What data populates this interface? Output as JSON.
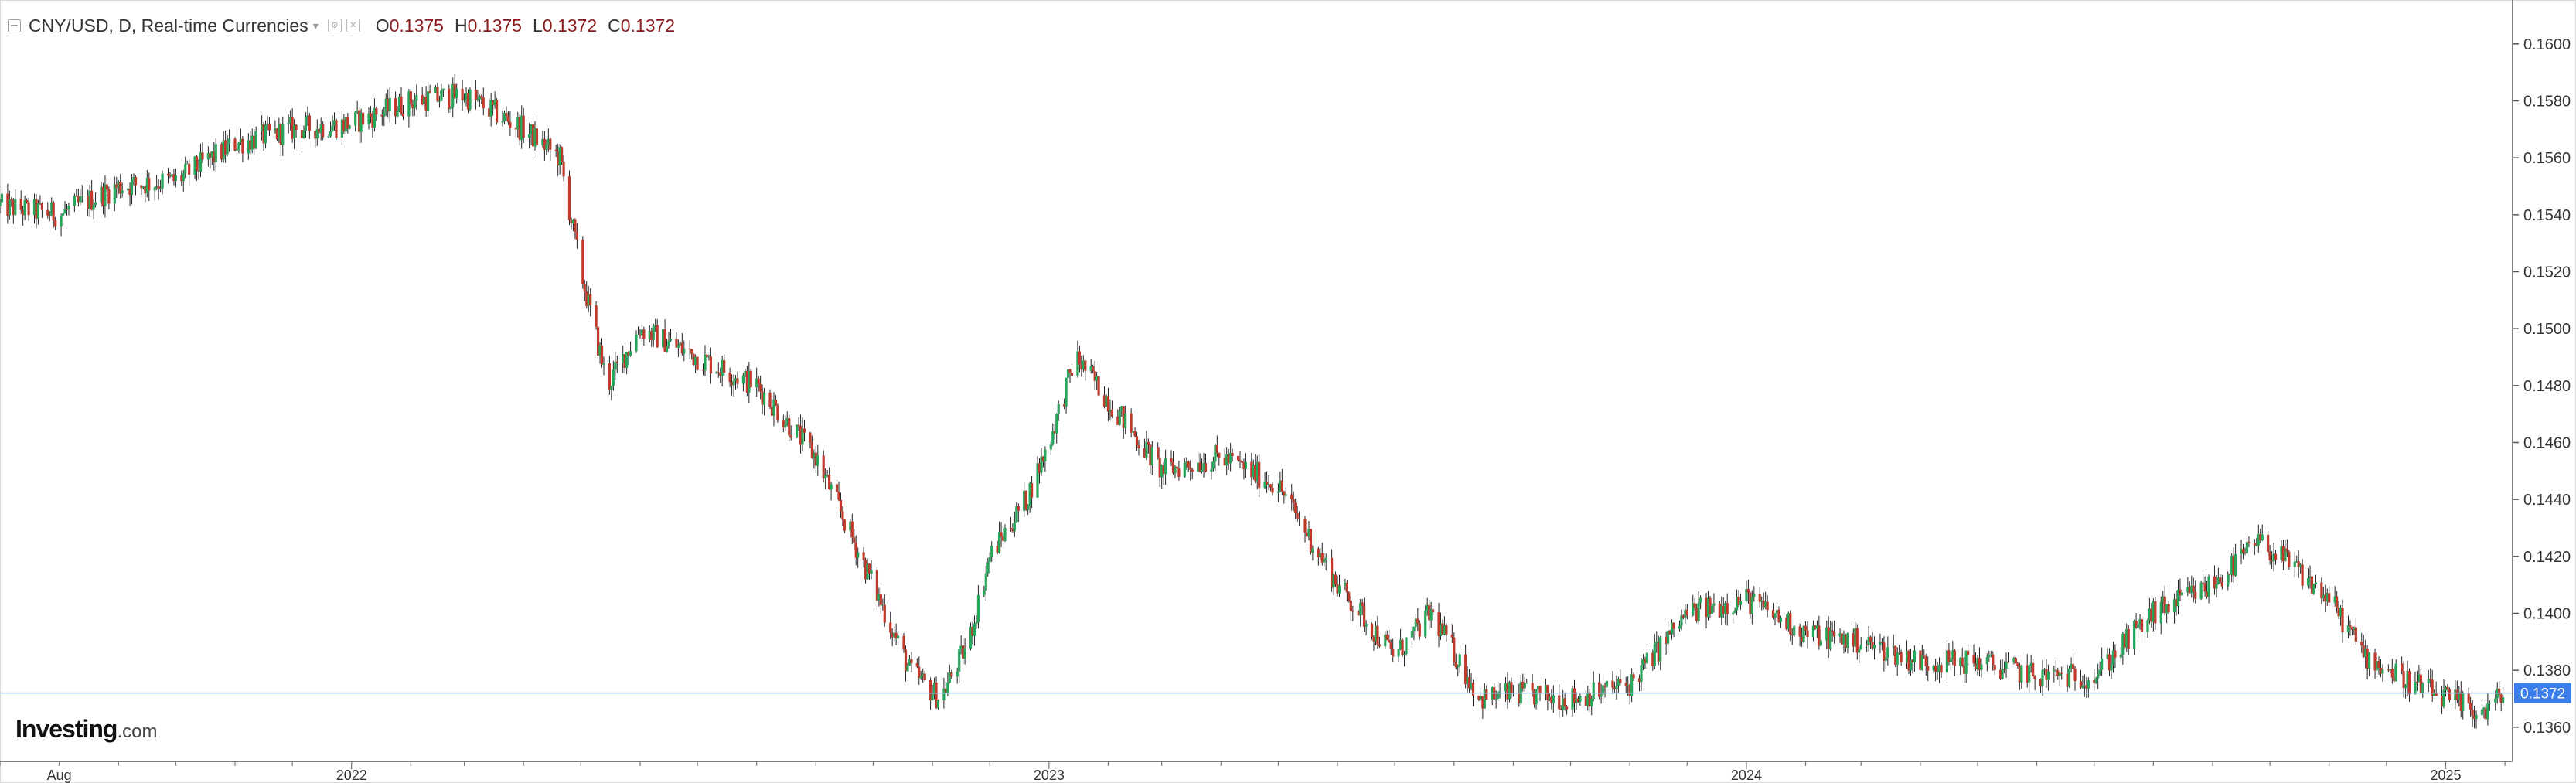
{
  "legend": {
    "title": "CNY/USD, D, Real-time Currencies",
    "open_key": "O",
    "open": "0.1375",
    "high_key": "H",
    "high": "0.1375",
    "low_key": "L",
    "low": "0.1372",
    "close_key": "C",
    "close": "0.1372"
  },
  "logo": {
    "main": "Investing",
    "suffix": ".com"
  },
  "colors": {
    "up": "#26a65b",
    "down": "#c0392b",
    "price_line": "#9fc3ef",
    "price_tag": "#3b7de9",
    "axis_text": "#333333"
  },
  "chart_data": {
    "type": "candlestick",
    "symbol": "CNY/USD",
    "interval": "D",
    "x_ticks": [
      "Aug",
      "2022",
      "2023",
      "2024",
      "2025"
    ],
    "x_tick_dates": [
      "2021-08-01",
      "2022-01-01",
      "2023-01-01",
      "2024-01-01",
      "2025-01-01"
    ],
    "x_range": [
      "2021-07-01",
      "2025-02-05"
    ],
    "y_ticks": [
      "0.1360",
      "0.1380",
      "0.1400",
      "0.1420",
      "0.1440",
      "0.1460",
      "0.1480",
      "0.1500",
      "0.1520",
      "0.1540",
      "0.1560",
      "0.1580",
      "0.1600"
    ],
    "ylim": [
      0.1348,
      0.161
    ],
    "last_price": "0.1372",
    "grid": false,
    "price_path": [
      [
        "2021-07-01",
        0.1543
      ],
      [
        "2021-08-01",
        0.154
      ],
      [
        "2021-09-01",
        0.155
      ],
      [
        "2021-10-01",
        0.1552
      ],
      [
        "2021-11-01",
        0.1565
      ],
      [
        "2021-12-01",
        0.157
      ],
      [
        "2022-01-01",
        0.1572
      ],
      [
        "2022-02-01",
        0.158
      ],
      [
        "2022-03-01",
        0.1582
      ],
      [
        "2022-04-01",
        0.157
      ],
      [
        "2022-04-20",
        0.156
      ],
      [
        "2022-05-01",
        0.152
      ],
      [
        "2022-05-15",
        0.148
      ],
      [
        "2022-06-01",
        0.15
      ],
      [
        "2022-07-01",
        0.149
      ],
      [
        "2022-08-01",
        0.148
      ],
      [
        "2022-09-01",
        0.1455
      ],
      [
        "2022-10-01",
        0.141
      ],
      [
        "2022-10-20",
        0.138
      ],
      [
        "2022-11-05",
        0.137
      ],
      [
        "2022-11-20",
        0.139
      ],
      [
        "2022-12-01",
        0.142
      ],
      [
        "2022-12-20",
        0.144
      ],
      [
        "2023-01-01",
        0.146
      ],
      [
        "2023-01-15",
        0.149
      ],
      [
        "2023-02-01",
        0.1475
      ],
      [
        "2023-03-01",
        0.145
      ],
      [
        "2023-04-01",
        0.1455
      ],
      [
        "2023-05-01",
        0.1445
      ],
      [
        "2023-06-01",
        0.141
      ],
      [
        "2023-07-01",
        0.1385
      ],
      [
        "2023-07-20",
        0.14
      ],
      [
        "2023-08-15",
        0.137
      ],
      [
        "2023-09-01",
        0.1372
      ],
      [
        "2023-10-01",
        0.137
      ],
      [
        "2023-11-01",
        0.1375
      ],
      [
        "2023-12-01",
        0.14
      ],
      [
        "2024-01-01",
        0.1405
      ],
      [
        "2024-02-01",
        0.1393
      ],
      [
        "2024-03-01",
        0.139
      ],
      [
        "2024-04-01",
        0.1383
      ],
      [
        "2024-05-01",
        0.1383
      ],
      [
        "2024-06-01",
        0.1378
      ],
      [
        "2024-07-01",
        0.1378
      ],
      [
        "2024-08-01",
        0.14
      ],
      [
        "2024-09-01",
        0.141
      ],
      [
        "2024-09-25",
        0.1425
      ],
      [
        "2024-10-10",
        0.1418
      ],
      [
        "2024-11-01",
        0.1405
      ],
      [
        "2024-11-20",
        0.1385
      ],
      [
        "2024-12-10",
        0.1377
      ],
      [
        "2025-01-01",
        0.137
      ],
      [
        "2025-01-20",
        0.1365
      ],
      [
        "2025-02-01",
        0.1372
      ]
    ]
  }
}
